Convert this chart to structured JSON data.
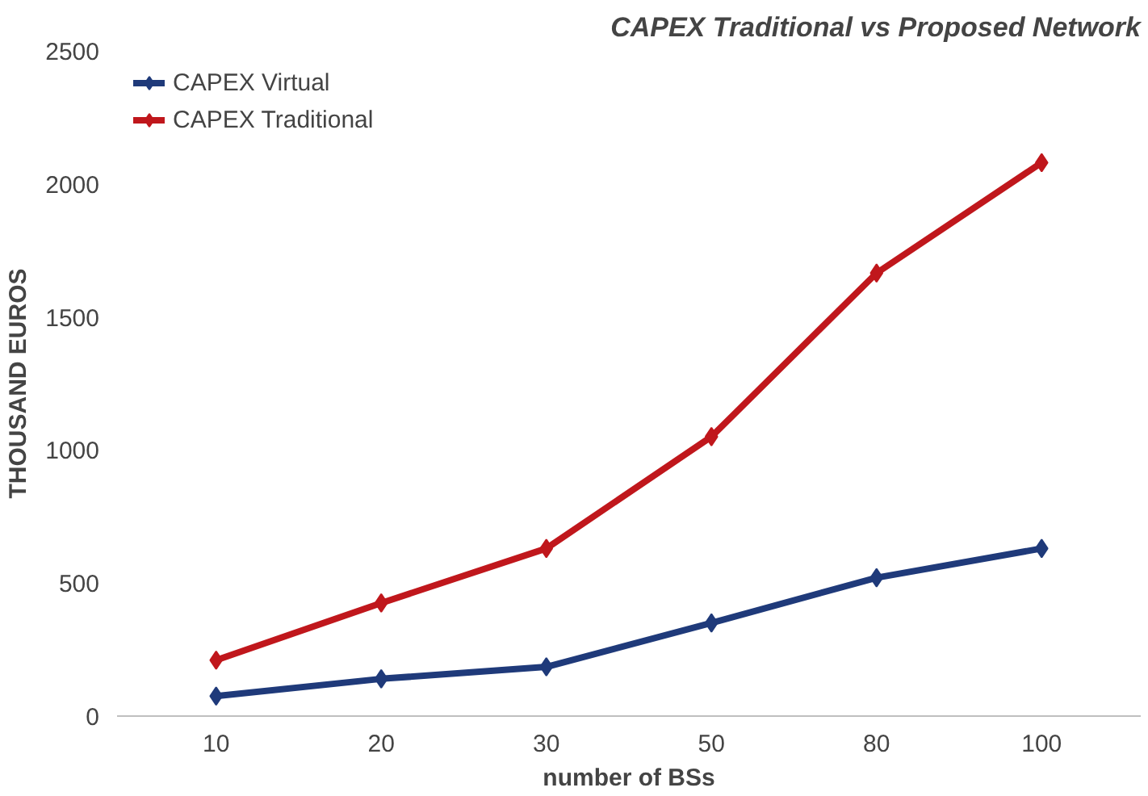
{
  "chart_data": {
    "type": "line",
    "title": "CAPEX Traditional vs Proposed Network",
    "xlabel": "number of BSs",
    "ylabel": "THOUSAND EUROS",
    "categories": [
      "10",
      "20",
      "30",
      "50",
      "80",
      "100"
    ],
    "series": [
      {
        "name": "CAPEX Virtual",
        "color": "#1f3a7a",
        "values": [
          75,
          140,
          185,
          350,
          520,
          630
        ]
      },
      {
        "name": "CAPEX Traditional",
        "color": "#c0171c",
        "values": [
          210,
          425,
          630,
          1050,
          1665,
          2080
        ]
      }
    ],
    "ylim": [
      0,
      2500
    ],
    "yticks": [
      0,
      500,
      1000,
      1500,
      2000,
      2500
    ],
    "grid": false,
    "legend": "top left",
    "marker": "diamond",
    "line_style": "solid"
  }
}
